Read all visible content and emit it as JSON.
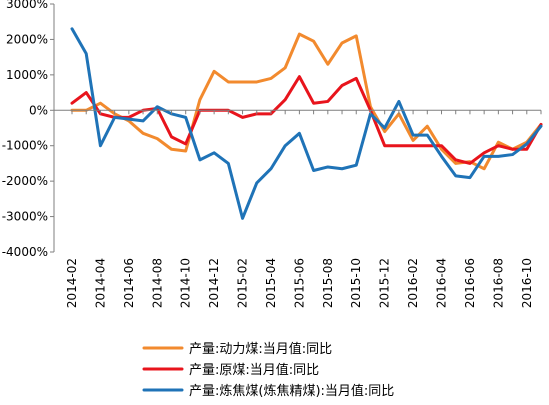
{
  "chart_data": {
    "type": "line",
    "title": "",
    "xlabel": "",
    "ylabel": "",
    "ylim": [
      -4000,
      3000
    ],
    "ytick_values": [
      -4000,
      -3000,
      -2000,
      -1000,
      0,
      1000,
      2000,
      3000
    ],
    "ytick_labels": [
      "-4000%",
      "-3000%",
      "-2000%",
      "-1000%",
      "0%",
      "1000%",
      "2000%",
      "3000%"
    ],
    "grid": false,
    "legend_position": "bottom",
    "x": [
      "2014-02",
      "2014-03",
      "2014-04",
      "2014-05",
      "2014-06",
      "2014-07",
      "2014-08",
      "2014-09",
      "2014-10",
      "2014-11",
      "2014-12",
      "2015-01",
      "2015-02",
      "2015-03",
      "2015-04",
      "2015-05",
      "2015-06",
      "2015-07",
      "2015-08",
      "2015-09",
      "2015-10",
      "2015-11",
      "2015-12",
      "2016-01",
      "2016-02",
      "2016-03",
      "2016-04",
      "2016-05",
      "2016-06",
      "2016-07",
      "2016-08",
      "2016-09",
      "2016-10",
      "2016-11"
    ],
    "xtick_labels": [
      "2014-02",
      "2014-04",
      "2014-06",
      "2014-08",
      "2014-10",
      "2014-12",
      "2015-02",
      "2015-04",
      "2015-06",
      "2015-08",
      "2015-10",
      "2015-12",
      "2016-02",
      "2016-04",
      "2016-06",
      "2016-08",
      "2016-10"
    ],
    "series": [
      {
        "name": "产量:动力煤:当月值:同比",
        "color": "#f28a2e",
        "values": [
          0,
          0,
          200,
          -100,
          -300,
          -650,
          -800,
          -1100,
          -1150,
          300,
          1100,
          800,
          800,
          800,
          900,
          1200,
          2150,
          1950,
          1300,
          1900,
          2100,
          100,
          -600,
          -100,
          -850,
          -450,
          -1100,
          -1500,
          -1450,
          -1650,
          -900,
          -1100,
          -900,
          -400
        ]
      },
      {
        "name": "产量:原煤:当月值:同比",
        "color": "#e8141c",
        "values": [
          200,
          500,
          -100,
          -200,
          -200,
          0,
          50,
          -750,
          -950,
          0,
          0,
          0,
          -200,
          -100,
          -100,
          300,
          950,
          200,
          250,
          700,
          900,
          0,
          -1000,
          -1000,
          -1000,
          -1000,
          -1000,
          -1400,
          -1500,
          -1200,
          -1000,
          -1100,
          -1100,
          -400
        ]
      },
      {
        "name": "产量:炼焦煤(炼焦精煤):当月值:同比",
        "color": "#1f73b7",
        "values": [
          2300,
          1600,
          -1000,
          -200,
          -250,
          -300,
          100,
          -100,
          -200,
          -1400,
          -1200,
          -1500,
          -3050,
          -2050,
          -1650,
          -1000,
          -650,
          -1700,
          -1600,
          -1650,
          -1550,
          -100,
          -500,
          250,
          -700,
          -700,
          -1300,
          -1850,
          -1900,
          -1300,
          -1300,
          -1250,
          -950,
          -450
        ]
      }
    ]
  }
}
